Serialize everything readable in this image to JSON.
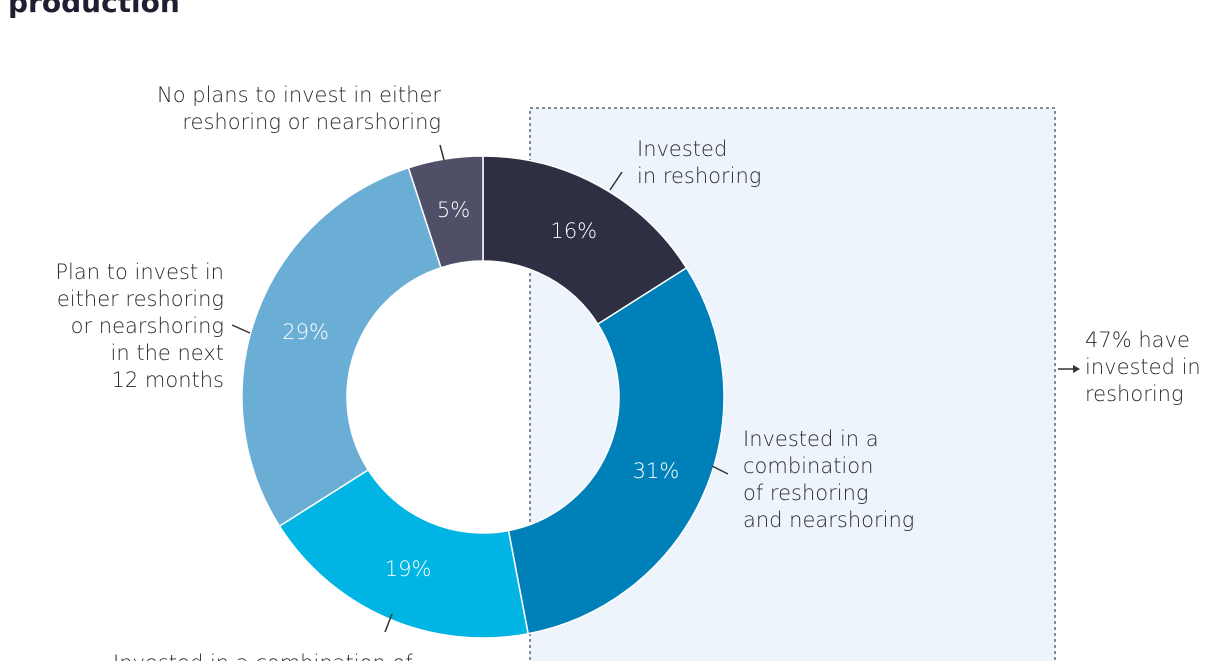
{
  "chart_data": {
    "type": "donut",
    "title": "production",
    "categories": [
      [
        "Invested",
        "in reshoring"
      ],
      [
        "Invested in a",
        "combination",
        "of reshoring",
        "and nearshoring"
      ],
      [
        "Invested in a combination of"
      ],
      [
        "Plan to invest in",
        "either reshoring",
        "or nearshoring",
        "in the next",
        "12 months"
      ],
      [
        "No plans to invest in either",
        "reshoring or nearshoring"
      ]
    ],
    "values": [
      16,
      31,
      19,
      29,
      5
    ],
    "value_labels": [
      "16%",
      "31%",
      "19%",
      "29%",
      "5%"
    ],
    "colors": [
      "#2e2f42",
      "#0080b8",
      "#00b5e3",
      "#6aaed6",
      "#4f5068"
    ],
    "annotation": [
      "47% have",
      "invested in",
      "reshoring"
    ]
  }
}
